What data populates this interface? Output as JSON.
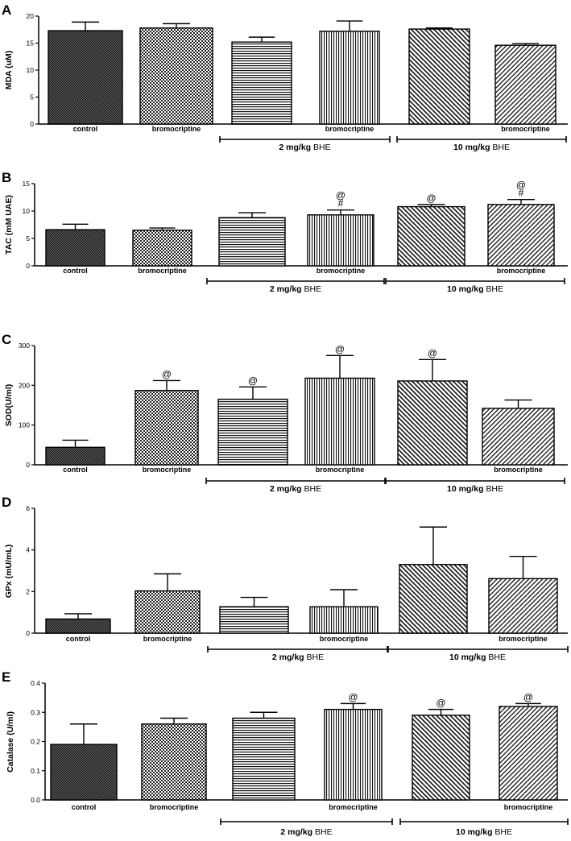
{
  "chart_data": [
    {
      "type": "bar",
      "panel": "A",
      "ylabel": "MDA (uM)",
      "ylim": [
        0,
        20
      ],
      "yticks": [
        "0",
        "5",
        "10",
        "15",
        "20"
      ],
      "categories": [
        "control",
        "bromocriptine",
        "",
        "bromocriptine",
        "",
        "bromocriptine"
      ],
      "values": [
        17.3,
        17.8,
        15.2,
        17.2,
        17.6,
        14.6
      ],
      "errors": [
        1.6,
        0.8,
        0.9,
        1.9,
        0.2,
        0.3
      ],
      "annotations": [
        "",
        "",
        "",
        "",
        "",
        ""
      ],
      "groups": [
        {
          "dose": "2 mg/kg",
          "agent": "BHE"
        },
        {
          "dose": "10 mg/kg",
          "agent": "BHE"
        }
      ]
    },
    {
      "type": "bar",
      "panel": "B",
      "ylabel": "TAC (mM UAE)",
      "ylim": [
        0,
        15
      ],
      "yticks": [
        "0",
        "5",
        "10",
        "15"
      ],
      "categories": [
        "control",
        "bromocriptine",
        "",
        "bromocriptine",
        "",
        "bromocriptine"
      ],
      "values": [
        6.6,
        6.5,
        8.8,
        9.3,
        10.8,
        11.2
      ],
      "errors": [
        1.0,
        0.4,
        0.9,
        0.9,
        0.4,
        0.9
      ],
      "annotations": [
        "",
        "",
        "",
        "@\n#",
        "@",
        "@\n#"
      ],
      "groups": [
        {
          "dose": "2 mg/kg",
          "agent": "BHE"
        },
        {
          "dose": "10 mg/kg",
          "agent": "BHE"
        }
      ]
    },
    {
      "type": "bar",
      "panel": "C",
      "ylabel": "SOD(U/ml)",
      "ylim": [
        0,
        300
      ],
      "yticks": [
        "0",
        "100",
        "200",
        "300"
      ],
      "categories": [
        "control",
        "bromocriptine",
        "",
        "bromocriptine",
        "",
        "bromocriptine"
      ],
      "values": [
        44,
        187,
        165,
        218,
        211,
        142
      ],
      "errors": [
        18,
        25,
        31,
        57,
        54,
        21
      ],
      "annotations": [
        "",
        "@",
        "@",
        "@",
        "@",
        ""
      ],
      "groups": [
        {
          "dose": "2 mg/kg",
          "agent": "BHE"
        },
        {
          "dose": "10 mg/kg",
          "agent": "BHE"
        }
      ]
    },
    {
      "type": "bar",
      "panel": "D",
      "ylabel": "GPx (mU/mL)",
      "ylim": [
        0,
        6
      ],
      "yticks": [
        "0",
        "2",
        "4",
        "6"
      ],
      "categories": [
        "control",
        "bromocriptine",
        "",
        "bromocriptine",
        "",
        "bromocriptine"
      ],
      "values": [
        0.68,
        2.03,
        1.27,
        1.27,
        3.3,
        2.62
      ],
      "errors": [
        0.25,
        0.82,
        0.45,
        0.82,
        1.8,
        1.07
      ],
      "annotations": [
        "",
        "",
        "",
        "",
        "",
        ""
      ],
      "groups": [
        {
          "dose": "2 mg/kg",
          "agent": "BHE"
        },
        {
          "dose": "10 mg/kg",
          "agent": "BHE"
        }
      ]
    },
    {
      "type": "bar",
      "panel": "E",
      "ylabel": "Catalase (U/ml)",
      "ylim": [
        0,
        0.4
      ],
      "yticks": [
        "0.0",
        "0.1",
        "0.2",
        "0.3",
        "0.4"
      ],
      "categories": [
        "control",
        "bromocriptine",
        "",
        "bromocriptine",
        "",
        "bromocriptine"
      ],
      "values": [
        0.19,
        0.26,
        0.28,
        0.31,
        0.29,
        0.32
      ],
      "errors": [
        0.07,
        0.02,
        0.02,
        0.02,
        0.02,
        0.01
      ],
      "annotations": [
        "",
        "",
        "",
        "@",
        "@",
        "@"
      ],
      "groups": [
        {
          "dose": "2 mg/kg",
          "agent": "BHE"
        },
        {
          "dose": "10 mg/kg",
          "agent": "BHE"
        }
      ]
    }
  ]
}
